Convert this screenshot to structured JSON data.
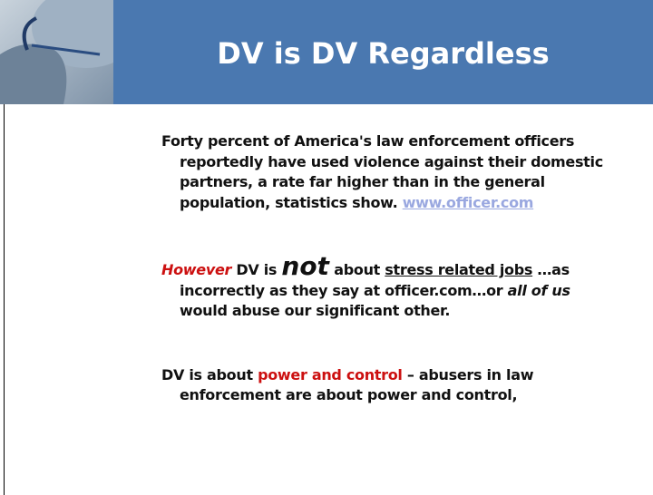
{
  "title": "DV is DV Regardless",
  "paragraphs": [
    {
      "runs": [
        {
          "text": "Forty percent of America's law enforcement officers reportedly have used violence against their domestic partners, a rate far higher than in the general population, statistics show.  "
        },
        {
          "text": "www.officer.com"
        }
      ]
    },
    {
      "runs": [
        {
          "text": "However"
        },
        {
          "text": " DV is "
        },
        {
          "text": "not"
        },
        {
          "text": " about "
        },
        {
          "text": "stress related jobs"
        },
        {
          "text": " …as incorrectly as they say at officer.com…or "
        },
        {
          "text": "all of us"
        },
        {
          "text": " would abuse our significant other."
        }
      ]
    },
    {
      "runs": [
        {
          "text": "DV is about "
        },
        {
          "text": "power and control"
        },
        {
          "text": " – abusers in law enforcement are about power and control,"
        }
      ]
    }
  ]
}
